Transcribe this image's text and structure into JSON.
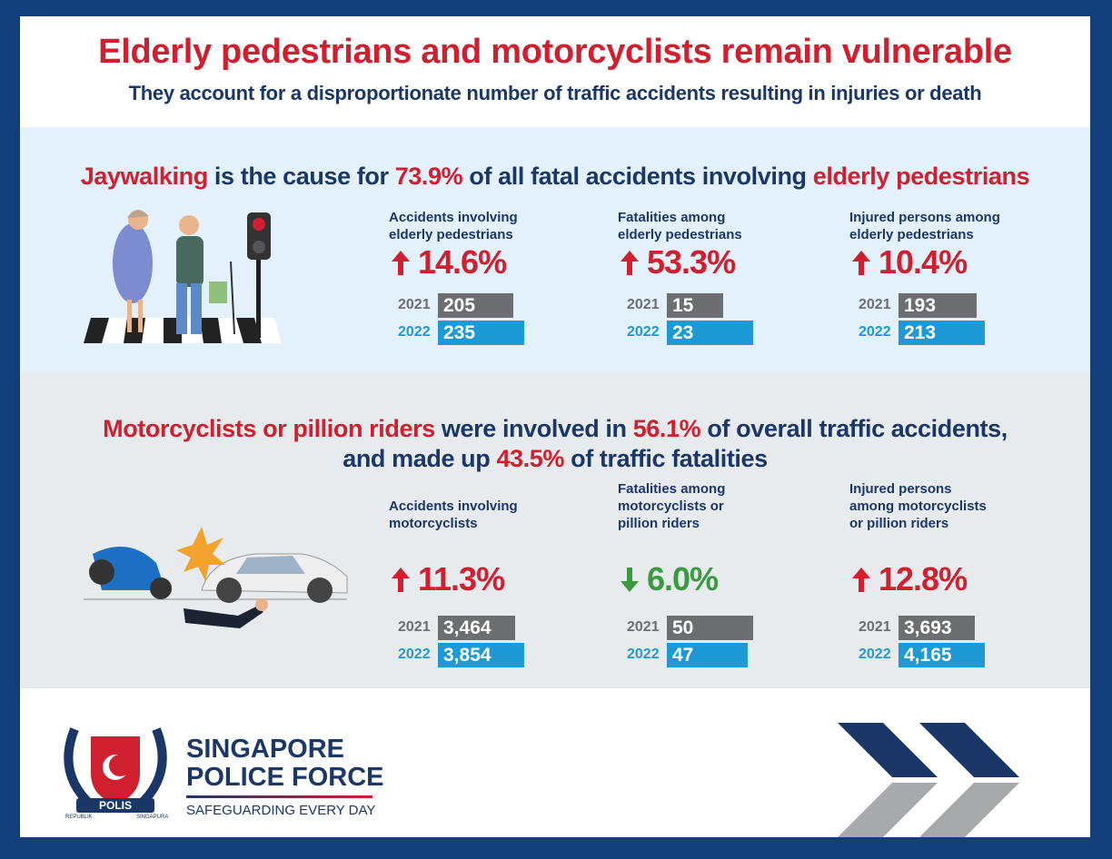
{
  "header": {
    "title": "Elderly pedestrians and motorcyclists remain vulnerable",
    "subtitle": "They account for a disproportionate number of traffic accidents resulting in injuries or death"
  },
  "colors": {
    "red": "#d01f2f",
    "navy": "#1b3768",
    "green": "#3a9a3f",
    "grey": "#6d6e71",
    "blue": "#1d9ad6"
  },
  "sections": [
    {
      "headline_lines": [
        [
          {
            "text": "Jaywalking",
            "color": "red"
          },
          {
            "text": " is the cause for ",
            "color": "navy"
          },
          {
            "text": "73.9%",
            "color": "red"
          },
          {
            "text": " of all fatal accidents involving ",
            "color": "navy"
          },
          {
            "text": "elderly pedestrians",
            "color": "red"
          }
        ]
      ],
      "stats": [
        {
          "label_lines": [
            "Accidents involving",
            "elderly pedestrians"
          ],
          "direction": "up",
          "change": "14.6%",
          "years": [
            "2021",
            "2022"
          ],
          "values": [
            205,
            235
          ]
        },
        {
          "label_lines": [
            "Fatalities among",
            "elderly pedestrians"
          ],
          "direction": "up",
          "change": "53.3%",
          "years": [
            "2021",
            "2022"
          ],
          "values": [
            15,
            23
          ]
        },
        {
          "label_lines": [
            "Injured persons among",
            "elderly pedestrians"
          ],
          "direction": "up",
          "change": "10.4%",
          "years": [
            "2021",
            "2022"
          ],
          "values": [
            193,
            213
          ]
        }
      ]
    },
    {
      "headline_lines": [
        [
          {
            "text": "Motorcyclists or pillion riders",
            "color": "red"
          },
          {
            "text": " were involved in ",
            "color": "navy"
          },
          {
            "text": "56.1%",
            "color": "red"
          },
          {
            "text": " of overall traffic accidents,",
            "color": "navy"
          }
        ],
        [
          {
            "text": "and made up ",
            "color": "navy"
          },
          {
            "text": "43.5%",
            "color": "red"
          },
          {
            "text": " of traffic fatalities",
            "color": "navy"
          }
        ]
      ],
      "stats": [
        {
          "label_lines": [
            "Accidents involving",
            "motorcyclists"
          ],
          "direction": "up",
          "change": "11.3%",
          "years": [
            "2021",
            "2022"
          ],
          "values": [
            3464,
            3854
          ],
          "value_labels": [
            "3,464",
            "3,854"
          ]
        },
        {
          "label_lines": [
            "Fatalities among",
            "motorcyclists or",
            "pillion riders"
          ],
          "direction": "down",
          "change": "6.0%",
          "years": [
            "2021",
            "2022"
          ],
          "values": [
            50,
            47
          ]
        },
        {
          "label_lines": [
            "Injured persons",
            "among motorcyclists",
            "or pillion riders"
          ],
          "direction": "up",
          "change": "12.8%",
          "years": [
            "2021",
            "2022"
          ],
          "values": [
            3693,
            4165
          ],
          "value_labels": [
            "3,693",
            "4,165"
          ]
        }
      ]
    }
  ],
  "footer": {
    "brand_lines": [
      "SINGAPORE",
      "POLICE FORCE"
    ],
    "tagline": "SAFEGUARDING EVERY DAY",
    "badge": "POLIS",
    "badge_left": "REPUBLIK",
    "badge_right": "SINGAPURA"
  }
}
